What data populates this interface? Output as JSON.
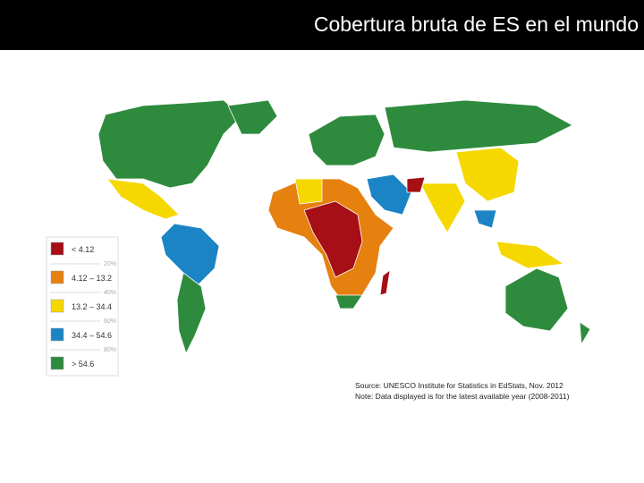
{
  "header": {
    "title": "Cobertura bruta de ES en el mundo"
  },
  "legend": {
    "items": [
      {
        "label": "< 4.12",
        "color": "#a50f15"
      },
      {
        "label": "4.12 – 13.2",
        "color": "#e6800f"
      },
      {
        "label": "13.2 – 34.4",
        "color": "#f5d800"
      },
      {
        "label": "34.4 – 54.6",
        "color": "#1a84c4"
      },
      {
        "label": "> 54.6",
        "color": "#2e8b3e"
      }
    ],
    "breaks": [
      "20%",
      "40%",
      "60%",
      "80%"
    ]
  },
  "source": [
    "Source:  UNESCO Institute for Statistics in EdStats, Nov. 2012",
    "Note: Data displayed is for the latest available year (2008-2011)"
  ]
}
